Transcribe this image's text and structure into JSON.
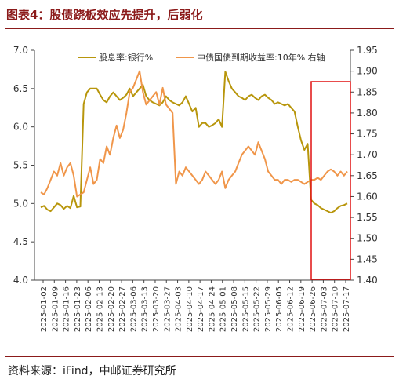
{
  "header": {
    "title": "图表4：股债跷板效应先提升，后弱化"
  },
  "footer": {
    "source": "资料来源：iFind，中邮证券研究所"
  },
  "chart_data": {
    "type": "line",
    "colors": {
      "series1": "#b8960c",
      "series2": "#f0964a",
      "highlight": "#e01010",
      "title": "#8b1a1a"
    },
    "grid": false,
    "legend_position": "top",
    "left_axis": {
      "min": 4.0,
      "max": 7.0,
      "ticks": [
        "4.0",
        "4.5",
        "5.0",
        "5.5",
        "6.0",
        "6.5",
        "7.0"
      ]
    },
    "right_axis": {
      "min": 1.4,
      "max": 1.95,
      "ticks": [
        "1.40",
        "1.45",
        "1.50",
        "1.55",
        "1.60",
        "1.65",
        "1.70",
        "1.75",
        "1.80",
        "1.85",
        "1.90",
        "1.95"
      ]
    },
    "x_ticks": [
      "2025-01-02",
      "2025-01-09",
      "2025-01-16",
      "2025-01-23",
      "2025-02-06",
      "2025-02-13",
      "2025-02-20",
      "2025-02-27",
      "2025-03-06",
      "2025-03-13",
      "2025-03-20",
      "2025-03-27",
      "2025-04-03",
      "2025-04-10",
      "2025-04-17",
      "2025-04-24",
      "2025-05-01",
      "2025-05-08",
      "2025-05-15",
      "2025-05-22",
      "2025-05-29",
      "2025-06-05",
      "2025-06-12",
      "2025-06-19",
      "2025-06-26",
      "2025-07-03",
      "2025-07-10",
      "2025-07-17"
    ],
    "series": [
      {
        "name": "股息率:银行%",
        "axis": "left",
        "values": [
          4.95,
          4.97,
          4.92,
          4.9,
          4.95,
          5.0,
          4.98,
          4.93,
          4.97,
          4.94,
          5.1,
          4.95,
          4.96,
          6.3,
          6.45,
          6.5,
          6.5,
          6.5,
          6.42,
          6.35,
          6.32,
          6.4,
          6.45,
          6.4,
          6.35,
          6.38,
          6.42,
          6.5,
          6.4,
          6.45,
          6.5,
          6.55,
          6.4,
          6.35,
          6.32,
          6.3,
          6.28,
          6.32,
          6.4,
          6.35,
          6.32,
          6.3,
          6.28,
          6.32,
          6.4,
          6.3,
          6.2,
          6.25,
          6.0,
          6.05,
          6.05,
          6.0,
          6.02,
          6.05,
          6.1,
          6.0,
          6.72,
          6.6,
          6.5,
          6.45,
          6.4,
          6.38,
          6.35,
          6.4,
          6.42,
          6.38,
          6.35,
          6.4,
          6.42,
          6.38,
          6.35,
          6.3,
          6.32,
          6.3,
          6.28,
          6.3,
          6.25,
          6.2,
          6.0,
          5.82,
          5.7,
          5.78,
          5.05,
          5.0,
          4.98,
          4.94,
          4.92,
          4.9,
          4.88,
          4.9,
          4.94,
          4.97,
          4.98,
          5.0
        ]
      },
      {
        "name": "中债国债到期收益率:10年% 右轴",
        "axis": "right",
        "values": [
          1.61,
          1.605,
          1.62,
          1.64,
          1.66,
          1.65,
          1.68,
          1.65,
          1.67,
          1.68,
          1.65,
          1.6,
          1.605,
          1.61,
          1.64,
          1.67,
          1.63,
          1.64,
          1.69,
          1.68,
          1.72,
          1.7,
          1.74,
          1.77,
          1.74,
          1.76,
          1.8,
          1.85,
          1.86,
          1.88,
          1.9,
          1.85,
          1.82,
          1.83,
          1.84,
          1.85,
          1.82,
          1.86,
          1.82,
          1.81,
          1.8,
          1.63,
          1.66,
          1.65,
          1.67,
          1.66,
          1.65,
          1.64,
          1.63,
          1.64,
          1.66,
          1.65,
          1.64,
          1.63,
          1.64,
          1.66,
          1.62,
          1.64,
          1.65,
          1.66,
          1.68,
          1.7,
          1.71,
          1.72,
          1.71,
          1.7,
          1.73,
          1.71,
          1.69,
          1.66,
          1.65,
          1.64,
          1.64,
          1.63,
          1.64,
          1.64,
          1.635,
          1.64,
          1.64,
          1.635,
          1.63,
          1.635,
          1.64,
          1.64,
          1.645,
          1.64,
          1.65,
          1.66,
          1.665,
          1.66,
          1.65,
          1.66,
          1.65,
          1.66
        ]
      }
    ]
  }
}
